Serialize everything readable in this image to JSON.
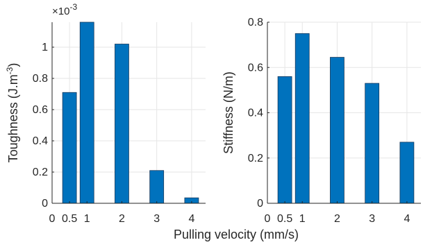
{
  "chart_data": [
    {
      "type": "bar",
      "panel": "left",
      "x": [
        0.5,
        1,
        2,
        3,
        4
      ],
      "values": [
        0.00071,
        0.00116,
        0.00102,
        0.00021,
        3.5e-05
      ],
      "ylabel_main": "Toughness (J.m",
      "ylabel_sup": "-3",
      "ylabel_end": ")",
      "exponent_prefix": "×10",
      "exponent_power": "-3",
      "ylim": [
        0,
        0.00116
      ],
      "xlim": [
        0,
        4.4
      ],
      "yticks": [
        0,
        0.0002,
        0.0004,
        0.0006,
        0.0008,
        0.001
      ],
      "ytick_labels": [
        "0",
        "0.2",
        "0.4",
        "0.6",
        "0.8",
        "1"
      ],
      "xticks": [
        0,
        0.5,
        1,
        2,
        3,
        4
      ],
      "xtick_labels": [
        "0",
        "0.5",
        "1",
        "2",
        "3",
        "4"
      ],
      "grid": true,
      "bar_color": "#0072BD"
    },
    {
      "type": "bar",
      "panel": "right",
      "x": [
        0.5,
        1,
        2,
        3,
        4
      ],
      "values": [
        0.56,
        0.75,
        0.645,
        0.53,
        0.27
      ],
      "ylabel": "Stiffness (N/m)",
      "ylim": [
        0,
        0.8
      ],
      "xlim": [
        0,
        4.4
      ],
      "yticks": [
        0,
        0.2,
        0.4,
        0.6,
        0.8
      ],
      "ytick_labels": [
        "0",
        "0.2",
        "0.4",
        "0.6",
        "0.8"
      ],
      "xticks": [
        0,
        0.5,
        1,
        2,
        3,
        4
      ],
      "xtick_labels": [
        "0",
        "0.5",
        "1",
        "2",
        "3",
        "4"
      ],
      "grid": true,
      "bar_color": "#0072BD"
    }
  ],
  "shared_xlabel": "Pulling velocity (mm/s)"
}
